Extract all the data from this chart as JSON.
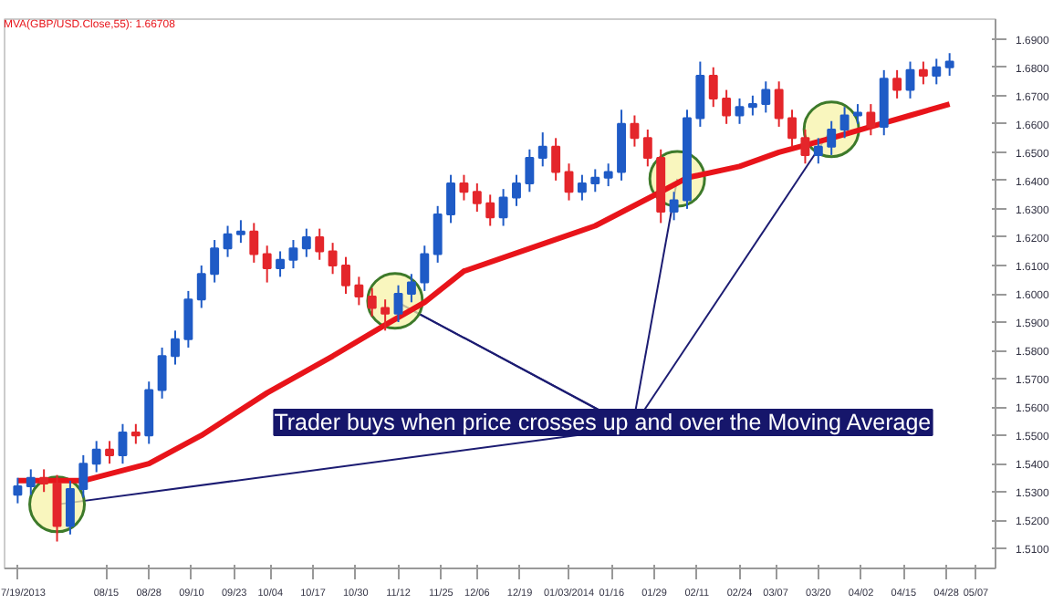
{
  "chart_data": {
    "type": "candlestick",
    "x": [
      "2013-07-19",
      "2013-07-23",
      "2013-07-27",
      "2013-07-31",
      "2013-08-04",
      "2013-08-08",
      "2013-08-12",
      "2013-08-16",
      "2013-08-20",
      "2013-08-24",
      "2013-08-28",
      "2013-09-01",
      "2013-09-05",
      "2013-09-09",
      "2013-09-13",
      "2013-09-17",
      "2013-09-21",
      "2013-09-25",
      "2013-09-29",
      "2013-10-03",
      "2013-10-07",
      "2013-10-11",
      "2013-10-15",
      "2013-10-19",
      "2013-10-23",
      "2013-10-27",
      "2013-10-31",
      "2013-11-04",
      "2013-11-08",
      "2013-11-12",
      "2013-11-16",
      "2013-11-20",
      "2013-11-24",
      "2013-11-28",
      "2013-12-02",
      "2013-12-06",
      "2013-12-10",
      "2013-12-14",
      "2013-12-18",
      "2013-12-22",
      "2013-12-26",
      "2013-12-30",
      "2014-01-03",
      "2014-01-07",
      "2014-01-11",
      "2014-01-15",
      "2014-01-19",
      "2014-01-23",
      "2014-01-27",
      "2014-01-31",
      "2014-02-04",
      "2014-02-08",
      "2014-02-12",
      "2014-02-16",
      "2014-02-20",
      "2014-02-24",
      "2014-02-28",
      "2014-03-04",
      "2014-03-08",
      "2014-03-12",
      "2014-03-16",
      "2014-03-20",
      "2014-03-24",
      "2014-03-28",
      "2014-04-01",
      "2014-04-05",
      "2014-04-09",
      "2014-04-13",
      "2014-04-17",
      "2014-04-21",
      "2014-04-25",
      "2014-04-29"
    ],
    "ohlc": [
      [
        1.529,
        1.535,
        1.526,
        1.532
      ],
      [
        1.532,
        1.538,
        1.529,
        1.535
      ],
      [
        1.535,
        1.538,
        1.53,
        1.533
      ],
      [
        1.533,
        1.536,
        1.5125,
        1.518
      ],
      [
        1.518,
        1.534,
        1.515,
        1.531
      ],
      [
        1.531,
        1.543,
        1.528,
        1.54
      ],
      [
        1.54,
        1.548,
        1.537,
        1.545
      ],
      [
        1.545,
        1.548,
        1.54,
        1.543
      ],
      [
        1.543,
        1.554,
        1.54,
        1.551
      ],
      [
        1.551,
        1.554,
        1.547,
        1.55
      ],
      [
        1.55,
        1.569,
        1.547,
        1.566
      ],
      [
        1.566,
        1.581,
        1.563,
        1.578
      ],
      [
        1.578,
        1.587,
        1.575,
        1.584
      ],
      [
        1.584,
        1.601,
        1.581,
        1.598
      ],
      [
        1.598,
        1.61,
        1.595,
        1.607
      ],
      [
        1.607,
        1.619,
        1.604,
        1.616
      ],
      [
        1.616,
        1.624,
        1.613,
        1.621
      ],
      [
        1.621,
        1.626,
        1.618,
        1.622
      ],
      [
        1.622,
        1.625,
        1.611,
        1.614
      ],
      [
        1.614,
        1.617,
        1.604,
        1.609
      ],
      [
        1.609,
        1.615,
        1.606,
        1.612
      ],
      [
        1.612,
        1.619,
        1.609,
        1.616
      ],
      [
        1.616,
        1.623,
        1.613,
        1.62
      ],
      [
        1.62,
        1.623,
        1.612,
        1.615
      ],
      [
        1.615,
        1.618,
        1.607,
        1.61
      ],
      [
        1.61,
        1.613,
        1.6,
        1.603
      ],
      [
        1.603,
        1.606,
        1.596,
        1.599
      ],
      [
        1.599,
        1.602,
        1.592,
        1.595
      ],
      [
        1.595,
        1.598,
        1.587,
        1.593
      ],
      [
        1.593,
        1.603,
        1.59,
        1.6
      ],
      [
        1.6,
        1.607,
        1.597,
        1.604
      ],
      [
        1.604,
        1.617,
        1.601,
        1.614
      ],
      [
        1.614,
        1.631,
        1.611,
        1.628
      ],
      [
        1.628,
        1.642,
        1.625,
        1.639
      ],
      [
        1.639,
        1.642,
        1.633,
        1.636
      ],
      [
        1.636,
        1.639,
        1.629,
        1.632
      ],
      [
        1.632,
        1.635,
        1.624,
        1.627
      ],
      [
        1.627,
        1.637,
        1.624,
        1.634
      ],
      [
        1.634,
        1.642,
        1.631,
        1.639
      ],
      [
        1.639,
        1.651,
        1.636,
        1.648
      ],
      [
        1.648,
        1.657,
        1.645,
        1.652
      ],
      [
        1.652,
        1.655,
        1.64,
        1.643
      ],
      [
        1.643,
        1.646,
        1.633,
        1.636
      ],
      [
        1.636,
        1.642,
        1.633,
        1.639
      ],
      [
        1.639,
        1.644,
        1.636,
        1.641
      ],
      [
        1.641,
        1.646,
        1.638,
        1.643
      ],
      [
        1.643,
        1.665,
        1.64,
        1.66
      ],
      [
        1.66,
        1.663,
        1.652,
        1.655
      ],
      [
        1.655,
        1.658,
        1.645,
        1.648
      ],
      [
        1.648,
        1.651,
        1.625,
        1.629
      ],
      [
        1.629,
        1.636,
        1.626,
        1.633
      ],
      [
        1.633,
        1.665,
        1.63,
        1.662
      ],
      [
        1.662,
        1.682,
        1.659,
        1.677
      ],
      [
        1.677,
        1.68,
        1.666,
        1.669
      ],
      [
        1.669,
        1.672,
        1.66,
        1.663
      ],
      [
        1.663,
        1.669,
        1.66,
        1.666
      ],
      [
        1.666,
        1.67,
        1.663,
        1.667
      ],
      [
        1.667,
        1.675,
        1.664,
        1.672
      ],
      [
        1.672,
        1.675,
        1.659,
        1.662
      ],
      [
        1.662,
        1.665,
        1.652,
        1.655
      ],
      [
        1.655,
        1.658,
        1.646,
        1.649
      ],
      [
        1.649,
        1.655,
        1.646,
        1.652
      ],
      [
        1.652,
        1.661,
        1.649,
        1.658
      ],
      [
        1.658,
        1.666,
        1.655,
        1.663
      ],
      [
        1.663,
        1.667,
        1.66,
        1.664
      ],
      [
        1.664,
        1.667,
        1.656,
        1.659
      ],
      [
        1.659,
        1.679,
        1.656,
        1.676
      ],
      [
        1.676,
        1.679,
        1.669,
        1.672
      ],
      [
        1.672,
        1.682,
        1.669,
        1.679
      ],
      [
        1.679,
        1.682,
        1.674,
        1.677
      ],
      [
        1.677,
        1.683,
        1.674,
        1.68
      ],
      [
        1.68,
        1.685,
        1.677,
        1.682
      ]
    ],
    "colors": [
      "#1f5bc6",
      "#1f5bc6",
      "#e4262b",
      "#e4262b",
      "#1f5bc6",
      "#1f5bc6",
      "#1f5bc6",
      "#e4262b",
      "#1f5bc6",
      "#e4262b",
      "#1f5bc6",
      "#1f5bc6",
      "#1f5bc6",
      "#1f5bc6",
      "#1f5bc6",
      "#1f5bc6",
      "#1f5bc6",
      "#1f5bc6",
      "#e4262b",
      "#e4262b",
      "#1f5bc6",
      "#1f5bc6",
      "#1f5bc6",
      "#e4262b",
      "#e4262b",
      "#e4262b",
      "#e4262b",
      "#e4262b",
      "#e4262b",
      "#1f5bc6",
      "#1f5bc6",
      "#1f5bc6",
      "#1f5bc6",
      "#1f5bc6",
      "#e4262b",
      "#e4262b",
      "#e4262b",
      "#1f5bc6",
      "#1f5bc6",
      "#1f5bc6",
      "#1f5bc6",
      "#e4262b",
      "#e4262b",
      "#1f5bc6",
      "#1f5bc6",
      "#1f5bc6",
      "#1f5bc6",
      "#e4262b",
      "#e4262b",
      "#e4262b",
      "#1f5bc6",
      "#1f5bc6",
      "#1f5bc6",
      "#e4262b",
      "#e4262b",
      "#1f5bc6",
      "#1f5bc6",
      "#1f5bc6",
      "#e4262b",
      "#e4262b",
      "#e4262b",
      "#1f5bc6",
      "#1f5bc6",
      "#1f5bc6",
      "#1f5bc6",
      "#e4262b",
      "#1f5bc6",
      "#e4262b",
      "#1f5bc6",
      "#e4262b",
      "#1f5bc6",
      "#1f5bc6"
    ],
    "series": [
      {
        "type": "line",
        "name": "MVA(GBP/USD.Close,55): 1.66708",
        "color": "#e8141a",
        "x": [
          "2013-07-19",
          "2013-08-08",
          "2013-08-28",
          "2013-09-13",
          "2013-10-03",
          "2013-10-23",
          "2013-11-08",
          "2013-11-20",
          "2013-12-02",
          "2013-12-22",
          "2014-01-11",
          "2014-01-31",
          "2014-02-08",
          "2014-02-24",
          "2014-03-08",
          "2014-03-24",
          "2014-04-05",
          "2014-04-17",
          "2014-04-29"
        ],
        "values": [
          1.534,
          1.534,
          1.54,
          1.55,
          1.565,
          1.578,
          1.589,
          1.597,
          1.608,
          1.616,
          1.624,
          1.636,
          1.641,
          1.645,
          1.65,
          1.655,
          1.659,
          1.663,
          1.667
        ]
      },
      {
        "type": "scatter",
        "color": "#f7f3a8",
        "x": [
          "2013-07-31",
          "2013-11-11",
          "2014-02-05",
          "2014-03-24"
        ],
        "values": [
          1.5256,
          1.5975,
          1.6406,
          1.6581
        ]
      }
    ],
    "annotations": [
      {
        "text": "Trader buys when price crosses up and over the Moving Average",
        "x": "2013-11-11",
        "y": 1.5975
      }
    ],
    "xlim": [
      "2013-07-15",
      "2014-05-13"
    ],
    "xticks": [
      {
        "value": "2013-07-19",
        "label": "7/19/2013"
      },
      {
        "value": "2013-08-15",
        "label": "08/15"
      },
      {
        "value": "2013-08-28",
        "label": "08/28"
      },
      {
        "value": "2013-09-10",
        "label": "09/10"
      },
      {
        "value": "2013-09-23",
        "label": "09/23"
      },
      {
        "value": "2013-10-04",
        "label": "10/04"
      },
      {
        "value": "2013-10-17",
        "label": "10/17"
      },
      {
        "value": "2013-10-30",
        "label": "10/30"
      },
      {
        "value": "2013-11-12",
        "label": "11/12"
      },
      {
        "value": "2013-11-25",
        "label": "11/25"
      },
      {
        "value": "2013-12-06",
        "label": "12/06"
      },
      {
        "value": "2013-12-19",
        "label": "12/19"
      },
      {
        "value": "2014-01-03",
        "label": "01/03/2014"
      },
      {
        "value": "2014-01-16",
        "label": "01/16"
      },
      {
        "value": "2014-01-29",
        "label": "01/29"
      },
      {
        "value": "2014-02-11",
        "label": "02/11"
      },
      {
        "value": "2014-02-24",
        "label": "02/24"
      },
      {
        "value": "2014-03-07",
        "label": "03/07"
      },
      {
        "value": "2014-03-20",
        "label": "03/20"
      },
      {
        "value": "2014-04-02",
        "label": "04/02"
      },
      {
        "value": "2014-04-15",
        "label": "04/15"
      },
      {
        "value": "2014-04-28",
        "label": "04/28"
      },
      {
        "value": "2014-05-07",
        "label": "05/07"
      }
    ],
    "ylim": [
      1.503,
      1.697
    ],
    "yticks": [
      {
        "value": 1.51,
        "label": "1.5100"
      },
      {
        "value": 1.52,
        "label": "1.5200"
      },
      {
        "value": 1.53,
        "label": "1.5300"
      },
      {
        "value": 1.54,
        "label": "1.5400"
      },
      {
        "value": 1.55,
        "label": "1.5500"
      },
      {
        "value": 1.56,
        "label": "1.5600"
      },
      {
        "value": 1.57,
        "label": "1.5700"
      },
      {
        "value": 1.58,
        "label": "1.5800"
      },
      {
        "value": 1.59,
        "label": "1.5900"
      },
      {
        "value": 1.6,
        "label": "1.6000"
      },
      {
        "value": 1.61,
        "label": "1.6100"
      },
      {
        "value": 1.62,
        "label": "1.6200"
      },
      {
        "value": 1.63,
        "label": "1.6300"
      },
      {
        "value": 1.64,
        "label": "1.6400"
      },
      {
        "value": 1.65,
        "label": "1.6500"
      },
      {
        "value": 1.66,
        "label": "1.6600"
      },
      {
        "value": 1.67,
        "label": "1.6700"
      },
      {
        "value": 1.68,
        "label": "1.6800"
      },
      {
        "value": 1.69,
        "label": "1.6900"
      }
    ],
    "grid": false,
    "legend": "top left"
  }
}
